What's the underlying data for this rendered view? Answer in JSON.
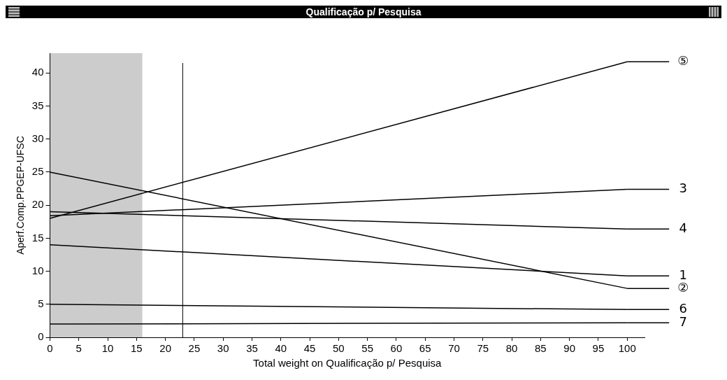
{
  "chart_data": {
    "type": "line",
    "title": "Qualificação p/ Pesquisa",
    "xlabel": "Total weight on Qualificação p/ Pesquisa",
    "ylabel": "Aperf.Comp.PPGEP-UFSC",
    "x": [
      0,
      100
    ],
    "series": [
      {
        "name": "⑤",
        "color": "#000000",
        "values": [
          18,
          41.7
        ]
      },
      {
        "name": "3",
        "color": "#000000",
        "values": [
          18.4,
          22.4
        ]
      },
      {
        "name": "4",
        "color": "#000000",
        "values": [
          19,
          16.4
        ]
      },
      {
        "name": "1",
        "color": "#000000",
        "values": [
          14,
          9.3
        ]
      },
      {
        "name": "②",
        "color": "#000000",
        "values": [
          25,
          7.4
        ]
      },
      {
        "name": "6",
        "color": "#000000",
        "values": [
          5,
          4.2
        ]
      },
      {
        "name": "7",
        "color": "#000000",
        "values": [
          2,
          2.2
        ]
      }
    ],
    "xlim": [
      0,
      103
    ],
    "xticks": [
      0,
      5,
      10,
      15,
      20,
      25,
      30,
      35,
      40,
      45,
      50,
      55,
      60,
      65,
      70,
      75,
      80,
      85,
      90,
      95,
      100
    ],
    "ylim": [
      0,
      43
    ],
    "yticks": [
      0,
      5,
      10,
      15,
      20,
      25,
      30,
      35,
      40
    ],
    "ref_lines": [
      {
        "axis": "x",
        "value": 23,
        "color": "#000000"
      }
    ],
    "bands": [
      {
        "axis": "x",
        "from": 0,
        "to": 16,
        "color": "#000000"
      }
    ],
    "grid": false,
    "legend": "right",
    "marker": "none",
    "line_style": "solid"
  }
}
